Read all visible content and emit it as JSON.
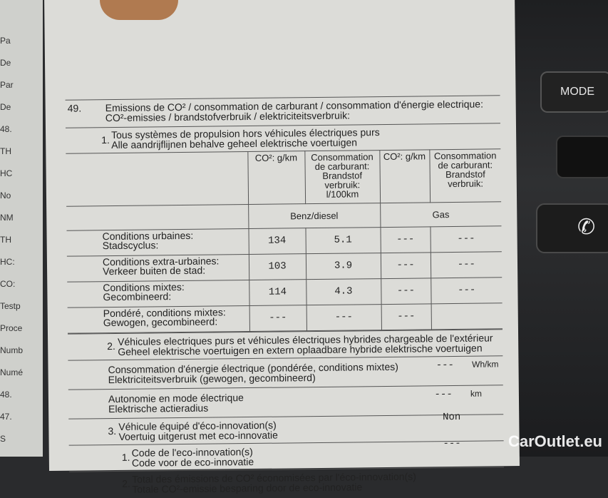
{
  "left_edge": [
    "Pa",
    "De",
    "Par",
    "De",
    "48.",
    "TH",
    "HC",
    "No",
    "NM",
    "TH",
    "HC:",
    "CO:",
    "Testp",
    "Proce",
    "Numb",
    "Numé",
    "48.",
    "47.",
    "S"
  ],
  "console": {
    "mode_label": "MODE",
    "phone_icon": "phone-icon"
  },
  "doc": {
    "section_num": "49.",
    "title_fr": "Emissions de CO² / consommation de carburant / consommation d'énergie electrique:",
    "title_nl": "CO²-emissies / brandstofverbruik / elektriciteitsverbruik:",
    "s1": {
      "num": "1.",
      "fr": "Tous systèmes de propulsion hors véhicules électriques purs",
      "nl": "Alle aandrijflijnen behalve geheel elektrische voertuigen"
    },
    "table": {
      "headers": [
        "CO²: g/km",
        "Consommation de carburant: Brandstof verbruik: l/100km",
        "CO²: g/km",
        "Consommation de carburant: Brandstof verbruik:"
      ],
      "fuel1": "Benz/diesel",
      "fuel2": "Gas",
      "rows": [
        {
          "fr": "Conditions urbaines:",
          "nl": "Stadscyclus:",
          "co2": "134",
          "cons": "5.1",
          "gco2": "---",
          "gcons": "---"
        },
        {
          "fr": "Conditions extra-urbaines:",
          "nl": "Verkeer buiten de stad:",
          "co2": "103",
          "cons": "3.9",
          "gco2": "---",
          "gcons": "---"
        },
        {
          "fr": "Conditions mixtes:",
          "nl": "Gecombineerd:",
          "co2": "114",
          "cons": "4.3",
          "gco2": "---",
          "gcons": "---"
        },
        {
          "fr": "Pondéré, conditions mixtes:",
          "nl": "Gewogen, gecombineerd:",
          "co2": "---",
          "cons": "---",
          "gco2": "---",
          "gcons": ""
        }
      ]
    },
    "s2": {
      "num": "2.",
      "fr": "Véhicules electriques purs et véhicules électriques hybrides chargeable de l'extérieur",
      "nl": "Geheel elektrische voertuigen en extern oplaadbare hybride elektrische voertuigen"
    },
    "elec": {
      "fr": "Consommation d'énergie électrique (pondérée, conditions mixtes)",
      "nl": "Elektriciteitsverbruik (gewogen, gecombineerd)",
      "value": "---",
      "unit": "Wh/km"
    },
    "range": {
      "fr": "Autonomie en mode électrique",
      "nl": "Elektrische actieradius",
      "value": "---",
      "unit": "km"
    },
    "s3": {
      "num": "3.",
      "fr": "Véhicule équipé d'éco-innovation(s)",
      "nl": "Voertuig uitgerust met eco-innovatie",
      "value": "Non"
    },
    "s31": {
      "num": "1.",
      "fr": "Code de l'eco-innovation(s)",
      "nl": "Code voor de eco-innovatie",
      "value": "---"
    },
    "s32": {
      "num": "2.",
      "fr": "Total des émissions de CO² économisées par l'éco-innovation(s)",
      "nl": "Totale CO²-emissie besparing door de eco-innovatie"
    }
  },
  "watermark": "CarOutlet.eu"
}
